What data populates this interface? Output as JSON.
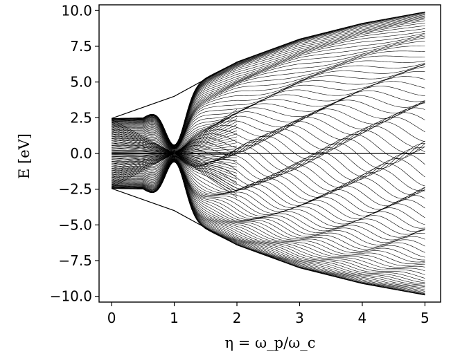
{
  "chart_data": {
    "type": "line",
    "title": "",
    "xlabel": "η = ω_p/ω_c",
    "ylabel": "E [eV]",
    "xlim": [
      -0.2,
      5.25
    ],
    "ylim": [
      -10.4,
      10.4
    ],
    "xticks": [
      0,
      1,
      2,
      3,
      4,
      5
    ],
    "xtick_labels": [
      "0",
      "1",
      "2",
      "3",
      "4",
      "5"
    ],
    "yticks": [
      -10.0,
      -7.5,
      -5.0,
      -2.5,
      0.0,
      2.5,
      5.0,
      7.5,
      10.0
    ],
    "ytick_labels": [
      "−10.0",
      "−7.5",
      "−5.0",
      "−2.5",
      "0.0",
      "2.5",
      "5.0",
      "7.5",
      "10.0"
    ],
    "grid": false,
    "line_color": "#000000",
    "x_range": [
      0,
      5
    ],
    "band_edges": [
      {
        "x": 0.0,
        "ymin": -2.45,
        "ymax": 2.45
      },
      {
        "x": 0.5,
        "ymin": -2.5,
        "ymax": 2.5
      },
      {
        "x": 1.0,
        "ymin": -4.0,
        "ymax": 4.0
      },
      {
        "x": 1.5,
        "ymin": -5.3,
        "ymax": 5.3
      },
      {
        "x": 2.0,
        "ymin": -6.4,
        "ymax": 6.4
      },
      {
        "x": 3.0,
        "ymin": -8.0,
        "ymax": 8.0
      },
      {
        "x": 4.0,
        "ymin": -9.1,
        "ymax": 9.1
      },
      {
        "x": 5.0,
        "ymin": -9.9,
        "ymax": 9.9
      }
    ],
    "series": [
      {
        "x": [
          0,
          1,
          2,
          3,
          4,
          5
        ],
        "y": [
          2.45,
          4.0,
          6.4,
          8.0,
          9.1,
          9.9
        ]
      },
      {
        "x": [
          0,
          1,
          2,
          3,
          4,
          5
        ],
        "y": [
          -2.45,
          -4.0,
          -6.4,
          -8.0,
          -9.1,
          -9.9
        ]
      },
      {
        "x": [
          0,
          1,
          2,
          3,
          4,
          5
        ],
        "y": [
          0.0,
          0.0,
          0.0,
          0.0,
          0.0,
          0.0
        ]
      }
    ]
  }
}
